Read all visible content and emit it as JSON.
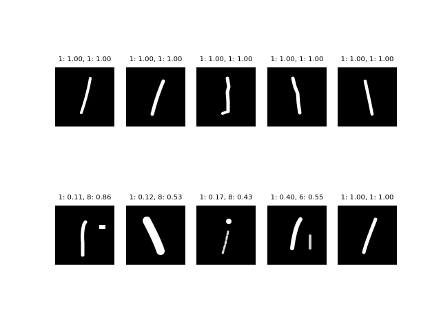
{
  "panels": [
    {
      "title": "1: 1.00, 1: 1.00",
      "digit": "thin-slant-stroke"
    },
    {
      "title": "1: 1.00, 1: 1.00",
      "digit": "slant-stroke"
    },
    {
      "title": "1: 1.00, 1: 1.00",
      "digit": "serif-one"
    },
    {
      "title": "1: 1.00, 1: 1.00",
      "digit": "back-slant-stroke"
    },
    {
      "title": "1: 1.00, 1: 1.00",
      "digit": "vertical-stroke"
    },
    {
      "title": "1: 0.11, 8: 0.86",
      "digit": "stroke-with-dot"
    },
    {
      "title": "1: 0.12, 8: 0.53",
      "digit": "thick-curved-stroke"
    },
    {
      "title": "1: 0.17, 8: 0.43",
      "digit": "dotted-i-stroke"
    },
    {
      "title": "1: 0.40, 6: 0.55",
      "digit": "double-stroke"
    },
    {
      "title": "1: 1.00, 1: 1.00",
      "digit": "long-slant-stroke"
    }
  ]
}
